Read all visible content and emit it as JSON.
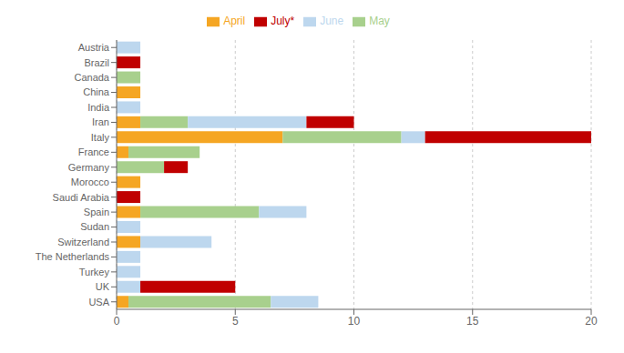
{
  "chart_data": {
    "type": "bar",
    "orientation": "horizontal",
    "stacked": true,
    "grid": true,
    "legend": "top",
    "categories": [
      "Austria",
      "Brazil",
      "Canada",
      "China",
      "India",
      "Iran",
      "Italy",
      "France",
      "Germany",
      "Morocco",
      "Saudi Arabia",
      "Spain",
      "Sudan",
      "Switzerland",
      "The Netherlands",
      "Turkey",
      "UK",
      "USA"
    ],
    "series": [
      {
        "name": "April",
        "color": "#F5A623",
        "values": [
          0,
          0,
          0,
          1,
          0,
          1,
          7,
          0.5,
          0,
          1,
          0,
          1,
          0,
          1,
          0,
          0,
          0,
          0.5
        ]
      },
      {
        "name": "May",
        "color": "#A8D08D",
        "values": [
          0,
          0,
          1,
          0,
          0,
          2,
          5,
          3,
          2,
          0,
          0,
          5,
          0,
          0,
          0,
          0,
          0,
          6
        ]
      },
      {
        "name": "June",
        "color": "#BDD7EE",
        "values": [
          1,
          0,
          0,
          0,
          1,
          5,
          1,
          0,
          0,
          0,
          0,
          2,
          1,
          3,
          1,
          1,
          1,
          2
        ]
      },
      {
        "name": "July*",
        "color": "#C00000",
        "values": [
          0,
          1,
          0,
          0,
          0,
          2,
          7,
          0,
          1,
          0,
          1,
          0,
          0,
          0,
          0,
          0,
          4,
          0
        ]
      }
    ],
    "xlim": [
      0,
      20
    ],
    "xticks": [
      0,
      5,
      10,
      15,
      20
    ]
  }
}
